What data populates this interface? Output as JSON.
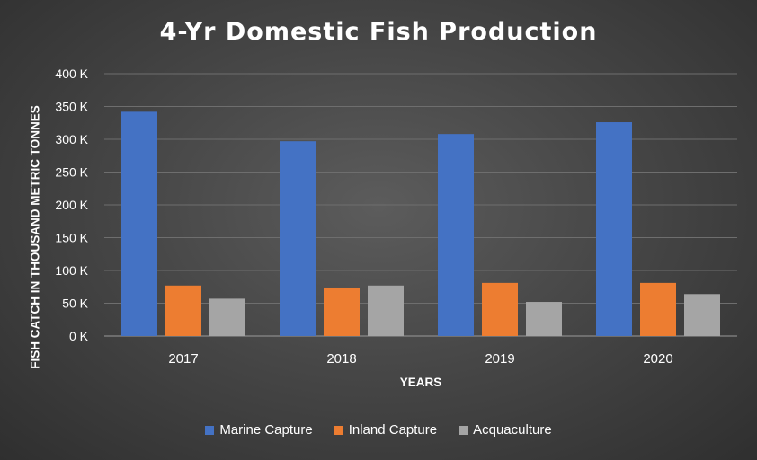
{
  "chart_data": {
    "type": "bar",
    "title": "4-Yr Domestic Fish Production",
    "xlabel": "YEARS",
    "ylabel": "FISH CATCH IN THOUSAND METRIC TONNES",
    "categories": [
      "2017",
      "2018",
      "2019",
      "2020"
    ],
    "series": [
      {
        "name": "Marine Capture",
        "values": [
          342000,
          297000,
          308000,
          326000
        ],
        "color": "#4472c4"
      },
      {
        "name": "Inland Capture",
        "values": [
          77000,
          74000,
          81000,
          81000
        ],
        "color": "#ed7d31"
      },
      {
        "name": "Acquaculture",
        "values": [
          57000,
          77000,
          52000,
          64000
        ],
        "color": "#a5a5a5"
      }
    ],
    "ylim": [
      0,
      400000
    ],
    "y_ticks": [
      {
        "value": 0,
        "label": "0 K"
      },
      {
        "value": 50000,
        "label": "50 K"
      },
      {
        "value": 100000,
        "label": "100 K"
      },
      {
        "value": 150000,
        "label": "150 K"
      },
      {
        "value": 200000,
        "label": "200 K"
      },
      {
        "value": 250000,
        "label": "250 K"
      },
      {
        "value": 300000,
        "label": "300 K"
      },
      {
        "value": 350000,
        "label": "350 K"
      },
      {
        "value": 400000,
        "label": "400 K"
      }
    ],
    "grid": true,
    "legend_position": "bottom"
  }
}
